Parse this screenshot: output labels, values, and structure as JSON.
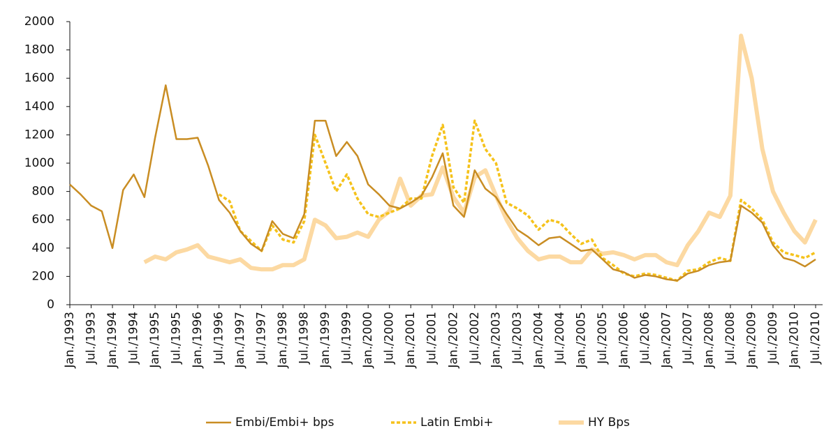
{
  "chart_data": {
    "type": "line",
    "categories": [
      "Jan./1993",
      null,
      "Jul./1993",
      null,
      "Jan./1994",
      null,
      "Jul./1994",
      null,
      "Jan./1995",
      null,
      "Jul./1995",
      null,
      "Jan./1996",
      null,
      "Jul./1996",
      null,
      "Jan./1997",
      null,
      "Jul./1997",
      null,
      "Jan./1998",
      null,
      "Jul./1998",
      null,
      "Jan./1999",
      null,
      "Jul./1999",
      null,
      "Jan./2000",
      null,
      "Jul./2000",
      null,
      "Jan./2001",
      null,
      "Jul./2001",
      null,
      "Jan./2002",
      null,
      "Jul./2002",
      null,
      "Jan./2003",
      null,
      "Jul./2003",
      null,
      "Jan./2004",
      null,
      "Jul./2004",
      null,
      "Jan./2005",
      null,
      "Jul./2005",
      null,
      "Jan./2006",
      null,
      "Jul./2006",
      null,
      "Jan./2007",
      null,
      "Jul./2007",
      null,
      "Jan./2008",
      null,
      "Jul./2008",
      null,
      "Jan./2009",
      null,
      "Jul./2009",
      null,
      "Jan./2010",
      null,
      "Jul./2010"
    ],
    "series": [
      {
        "name": "Embi/Embi+ bps",
        "color": "#c98d23",
        "values": [
          850,
          780,
          700,
          660,
          400,
          810,
          920,
          760,
          1180,
          1550,
          1170,
          1170,
          1180,
          980,
          740,
          650,
          520,
          430,
          380,
          590,
          500,
          470,
          640,
          1300,
          1300,
          1050,
          1150,
          1050,
          850,
          780,
          700,
          680,
          720,
          770,
          900,
          1070,
          700,
          620,
          950,
          820,
          760,
          640,
          530,
          480,
          420,
          470,
          480,
          430,
          380,
          390,
          320,
          250,
          230,
          190,
          210,
          200,
          180,
          170,
          220,
          240,
          280,
          300,
          310,
          700,
          650,
          580,
          420,
          330,
          310,
          270,
          320
        ]
      },
      {
        "name": "Latin Embi+",
        "color": "#f5c21b",
        "values": [
          null,
          null,
          null,
          null,
          null,
          null,
          null,
          null,
          null,
          null,
          null,
          null,
          null,
          null,
          780,
          730,
          520,
          450,
          380,
          560,
          460,
          440,
          590,
          1200,
          1000,
          800,
          920,
          750,
          640,
          620,
          650,
          680,
          750,
          750,
          1050,
          1270,
          830,
          720,
          1300,
          1100,
          1000,
          720,
          680,
          630,
          530,
          600,
          580,
          500,
          430,
          460,
          330,
          280,
          220,
          200,
          220,
          210,
          190,
          170,
          240,
          250,
          300,
          330,
          310,
          740,
          680,
          600,
          440,
          370,
          350,
          330,
          370
        ]
      },
      {
        "name": "HY Bps",
        "color": "#fcd9a2",
        "values": [
          null,
          null,
          null,
          null,
          null,
          null,
          null,
          300,
          340,
          320,
          370,
          390,
          420,
          340,
          320,
          300,
          320,
          260,
          250,
          250,
          280,
          280,
          320,
          600,
          560,
          470,
          480,
          510,
          480,
          600,
          660,
          890,
          700,
          770,
          780,
          970,
          760,
          650,
          900,
          950,
          770,
          600,
          470,
          380,
          320,
          340,
          340,
          300,
          300,
          390,
          360,
          370,
          350,
          320,
          350,
          350,
          300,
          280,
          420,
          520,
          650,
          620,
          770,
          1900,
          1600,
          1100,
          800,
          650,
          520,
          440,
          600
        ]
      }
    ],
    "ylim": [
      0,
      2000
    ],
    "yticks": [
      0,
      200,
      400,
      600,
      800,
      1000,
      1200,
      1400,
      1600,
      1800,
      2000
    ],
    "grid": false
  }
}
